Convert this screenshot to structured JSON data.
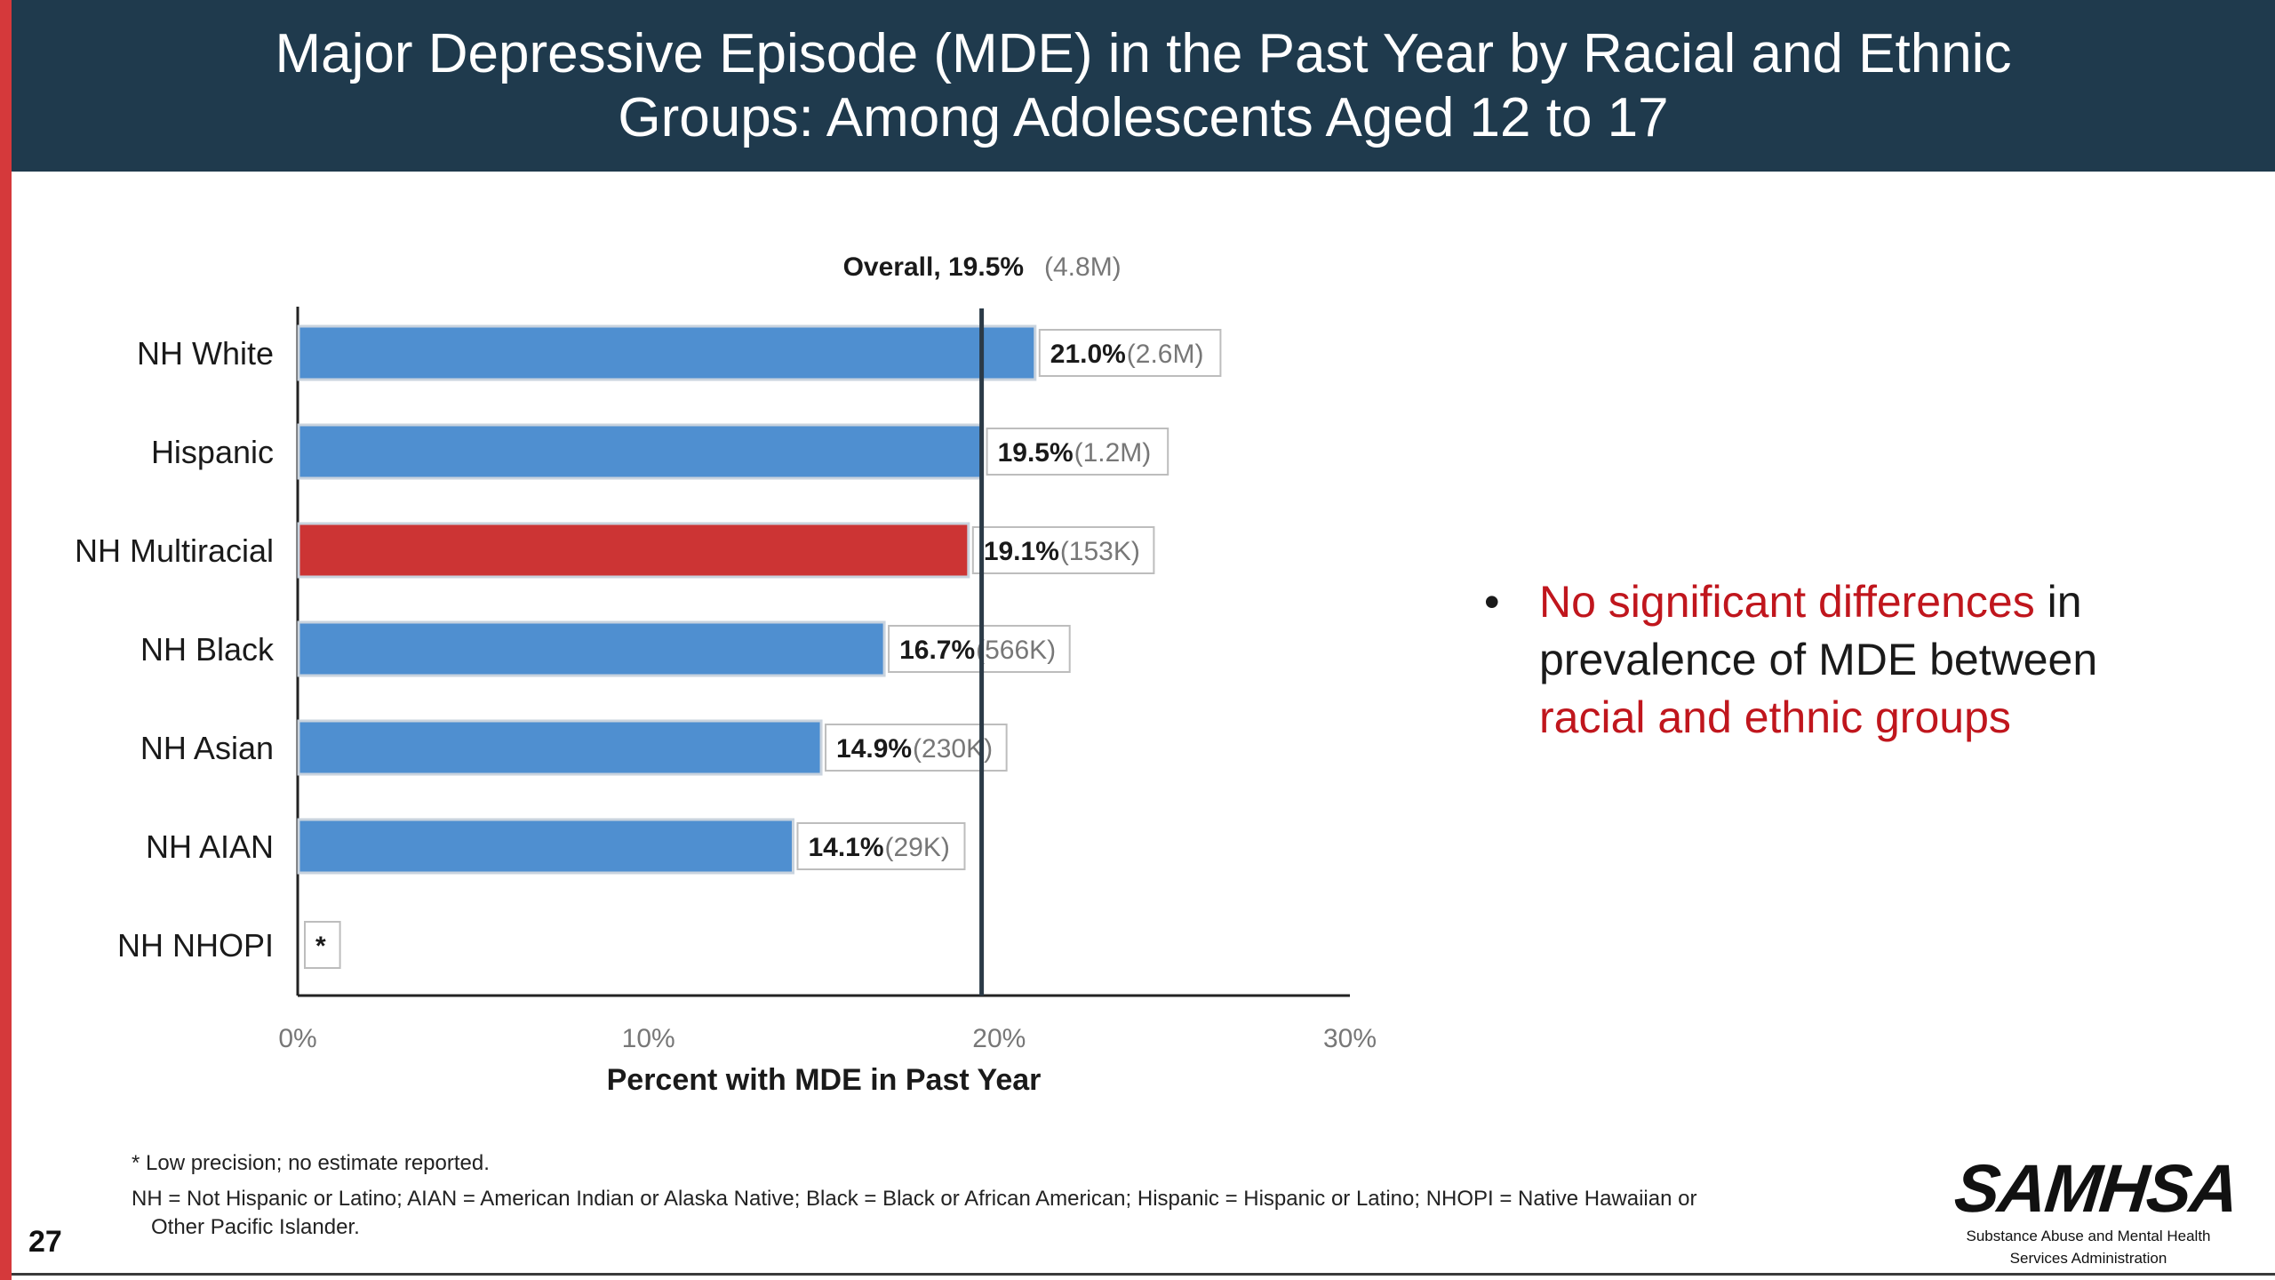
{
  "slide": {
    "title": "Major Depressive Episode (MDE) in the Past Year by Racial and Ethnic Groups: Among Adolescents Aged 12 to 17",
    "page_number": "27"
  },
  "callout": {
    "highlight_1": "No significant differences",
    "text_1": " in prevalence of MDE between ",
    "highlight_2": "racial and ethnic groups"
  },
  "footnotes": {
    "note_1": "* Low precision; no estimate reported.",
    "note_2_line1": "NH = Not Hispanic or Latino; AIAN = American Indian or Alaska Native; Black = Black or African American; Hispanic = Hispanic or Latino; NHOPI = Native Hawaiian or",
    "note_2_line2": "Other Pacific Islander."
  },
  "logo": {
    "name": "SAMHSA",
    "subtitle_line1": "Substance Abuse and Mental Health",
    "subtitle_line2": "Services Administration"
  },
  "colors": {
    "title_bar": "#1f3a4d",
    "bar_default": "#4f8fd0",
    "bar_highlight": "#cc3434",
    "accent_red": "#c0161d"
  },
  "chart_data": {
    "type": "bar",
    "orientation": "horizontal",
    "categories": [
      "NH White",
      "Hispanic",
      "NH Multiracial",
      "NH Black",
      "NH Asian",
      "NH AIAN",
      "NH NHOPI"
    ],
    "values": [
      21.0,
      19.5,
      19.1,
      16.7,
      14.9,
      14.1,
      null
    ],
    "value_labels": [
      "21.0%",
      "19.5%",
      "19.1%",
      "16.7%",
      "14.9%",
      "14.1%",
      "*"
    ],
    "count_labels": [
      "(2.6M)",
      "(1.2M)",
      "(153K)",
      "(566K)",
      "(230K)",
      "(29K)",
      ""
    ],
    "highlighted_category": "NH Multiracial",
    "reference_line": {
      "value": 19.5,
      "label": "Overall, 19.5%",
      "count": "(4.8M)"
    },
    "xlabel": "Percent with MDE in Past Year",
    "xlim": [
      0,
      30
    ],
    "xticks": [
      0,
      10,
      20,
      30
    ],
    "xtick_labels": [
      "0%",
      "10%",
      "20%",
      "30%"
    ],
    "grid": false
  }
}
